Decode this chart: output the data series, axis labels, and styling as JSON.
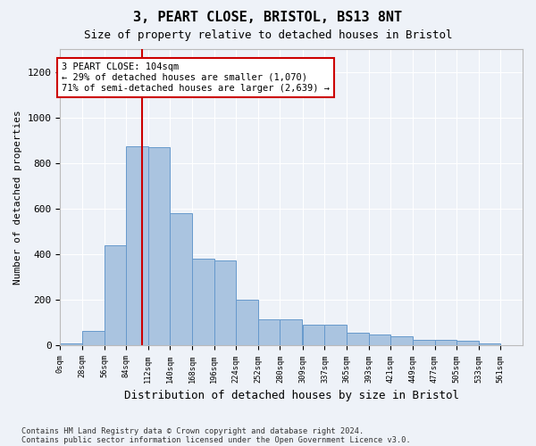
{
  "title1": "3, PEART CLOSE, BRISTOL, BS13 8NT",
  "title2": "Size of property relative to detached houses in Bristol",
  "xlabel": "Distribution of detached houses by size in Bristol",
  "ylabel": "Number of detached properties",
  "bar_color": "#aac4e0",
  "bar_edge_color": "#6699cc",
  "annotation_line_color": "#cc0000",
  "annotation_box_color": "#cc0000",
  "annotation_text": "3 PEART CLOSE: 104sqm\n← 29% of detached houses are smaller (1,070)\n71% of semi-detached houses are larger (2,639) →",
  "property_size": 104,
  "bin_width": 28,
  "bin_starts": [
    0,
    28,
    56,
    84,
    112,
    140,
    168,
    196,
    224,
    252,
    280,
    309,
    337,
    365,
    393,
    421,
    449,
    477,
    505,
    533
  ],
  "bar_heights": [
    10,
    65,
    440,
    875,
    870,
    580,
    380,
    375,
    200,
    115,
    115,
    90,
    90,
    55,
    50,
    40,
    25,
    25,
    20,
    8
  ],
  "xtick_labels": [
    "0sqm",
    "28sqm",
    "56sqm",
    "84sqm",
    "112sqm",
    "140sqm",
    "168sqm",
    "196sqm",
    "224sqm",
    "252sqm",
    "280sqm",
    "309sqm",
    "337sqm",
    "365sqm",
    "393sqm",
    "421sqm",
    "449sqm",
    "477sqm",
    "505sqm",
    "533sqm",
    "561sqm"
  ],
  "xtick_positions": [
    0,
    28,
    56,
    84,
    112,
    140,
    168,
    196,
    224,
    252,
    280,
    309,
    337,
    365,
    393,
    421,
    449,
    477,
    505,
    533,
    561
  ],
  "xlim_min": 0,
  "xlim_max": 589,
  "ylim_min": 0,
  "ylim_max": 1300,
  "yticks": [
    0,
    200,
    400,
    600,
    800,
    1000,
    1200
  ],
  "footnote1": "Contains HM Land Registry data © Crown copyright and database right 2024.",
  "footnote2": "Contains public sector information licensed under the Open Government Licence v3.0.",
  "background_color": "#eef2f8",
  "plot_bg_color": "#eef2f8"
}
